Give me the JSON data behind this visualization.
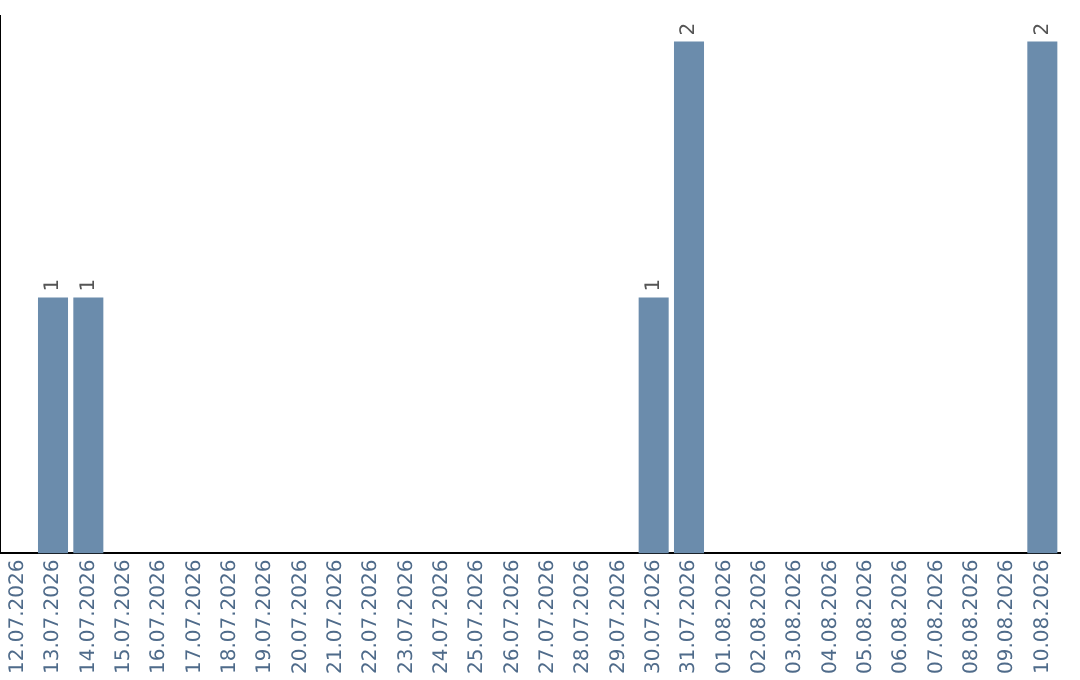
{
  "chart_data": {
    "type": "bar",
    "categories": [
      "12.07.2026",
      "13.07.2026",
      "14.07.2026",
      "15.07.2026",
      "16.07.2026",
      "17.07.2026",
      "18.07.2026",
      "19.07.2026",
      "20.07.2026",
      "21.07.2026",
      "22.07.2026",
      "23.07.2026",
      "24.07.2026",
      "25.07.2026",
      "26.07.2026",
      "27.07.2026",
      "28.07.2026",
      "29.07.2026",
      "30.07.2026",
      "31.07.2026",
      "01.08.2026",
      "02.08.2026",
      "03.08.2026",
      "04.08.2026",
      "05.08.2026",
      "06.08.2026",
      "07.08.2026",
      "08.08.2026",
      "09.08.2026",
      "10.08.2026"
    ],
    "values": [
      0,
      1,
      1,
      0,
      0,
      0,
      0,
      0,
      0,
      0,
      0,
      0,
      0,
      0,
      0,
      0,
      0,
      0,
      1,
      2,
      0,
      0,
      0,
      0,
      0,
      0,
      0,
      0,
      0,
      2
    ],
    "value_labels": [
      null,
      "1",
      "1",
      null,
      null,
      null,
      null,
      null,
      null,
      null,
      null,
      null,
      null,
      null,
      null,
      null,
      null,
      null,
      "1",
      "2",
      null,
      null,
      null,
      null,
      null,
      null,
      null,
      null,
      null,
      "2"
    ],
    "color": "#6b8cac",
    "ylim": [
      0,
      2.1
    ],
    "tick_labels": "x",
    "grid": false,
    "legend": false
  }
}
